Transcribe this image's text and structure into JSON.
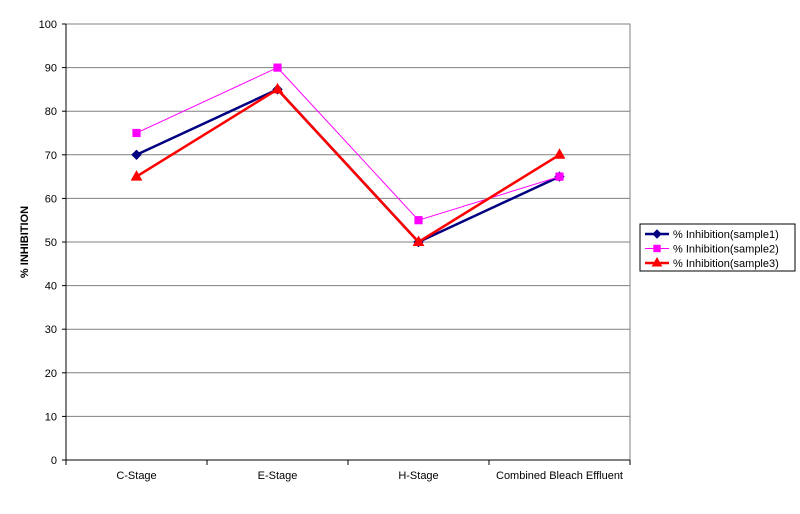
{
  "chart_data": {
    "type": "line",
    "title": "",
    "xlabel": "",
    "ylabel": "% INHIBITION",
    "categories": [
      "C-Stage",
      "E-Stage",
      "H-Stage",
      "Combined Bleach Effluent"
    ],
    "ylim": [
      0,
      100
    ],
    "yticks": [
      "0",
      "10",
      "20",
      "30",
      "40",
      "50",
      "60",
      "70",
      "80",
      "90",
      "100"
    ],
    "grid": true,
    "legend_position": "right",
    "series": [
      {
        "name": "% Inhibition(sample1)",
        "values": [
          70,
          85,
          50,
          65
        ],
        "color": "#000080",
        "marker": "diamond"
      },
      {
        "name": "% Inhibition(sample2)",
        "values": [
          75,
          90,
          55,
          65
        ],
        "color": "#ff00ff",
        "marker": "square"
      },
      {
        "name": "% Inhibition(sample3)",
        "values": [
          65,
          85,
          50,
          70
        ],
        "color": "#ff0000",
        "marker": "triangle"
      }
    ]
  }
}
